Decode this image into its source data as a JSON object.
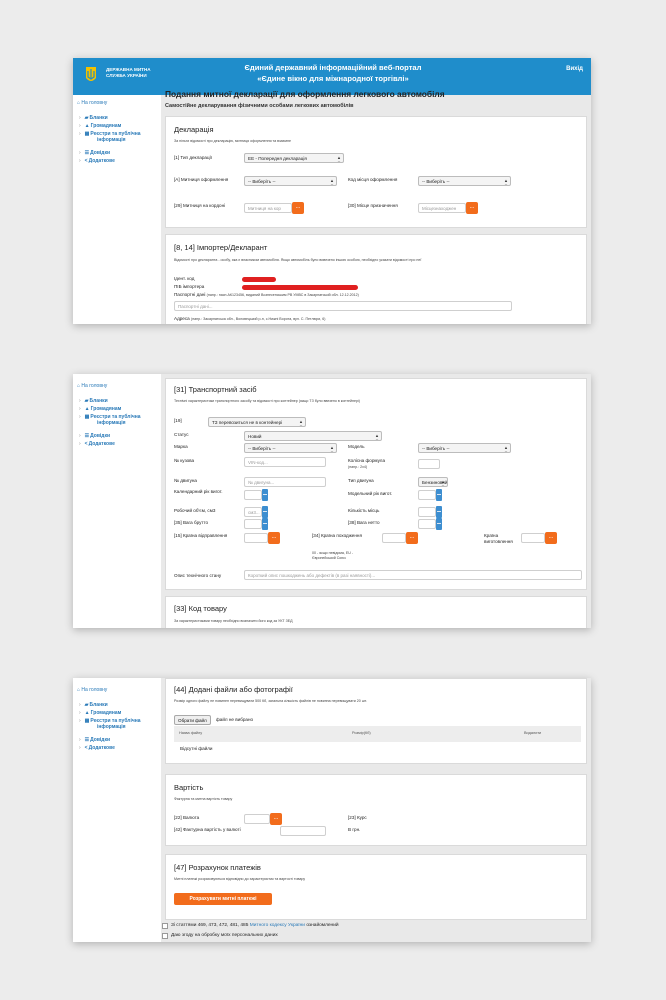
{
  "header": {
    "org_line1": "ДЕРЖАВНА МИТНА",
    "org_line2": "СЛУЖБА УКРАЇНИ",
    "portal_line1": "Єдиний державний інформаційний веб-портал",
    "portal_line2": "«Єдине вікно для міжнародної торгівлі»",
    "exit": "Вихід"
  },
  "sidebar": {
    "home": "На головну",
    "items": [
      {
        "label": "Бланки",
        "icon": "briefcase-icon"
      },
      {
        "label": "Громадянам",
        "icon": "users-icon"
      },
      {
        "label": "Реєстри та публічна",
        "label2": "інформація",
        "icon": "grid-icon"
      },
      {
        "label": "Довідки",
        "icon": "list-icon"
      },
      {
        "label": "Додаткове",
        "icon": "share-icon"
      }
    ]
  },
  "page": {
    "title": "Подання митної декларації для оформлення легкового автомобіля",
    "subtitle": "Самостійне декларування фізичними особами легкових автомобілів"
  },
  "declaration": {
    "title": "Декларація",
    "hint": "За пільги відомості про декларацію, митниця оформлення та взаємне",
    "type_label": "[1] Тип декларації",
    "type_value": "ЕЕ - Попередня декларація",
    "customs_a_label": "[A] Митниця оформлення",
    "customs_a_value": "-- Виберіть --",
    "place_code_label": "Код місця оформлення",
    "place_code_value": "-- Виберіть --",
    "border_label": "[29] Митниця на кордоні",
    "border_placeholder": "Митниця на кор",
    "dest_label": "[30] Місце призначення",
    "dest_placeholder": "Місцезнаходжен",
    "search_btn": "..."
  },
  "importer": {
    "title": "[8, 14] Імпортер/Декларант",
    "hint": "Відомості про декларанта - особу, яка є власником автомобіля. Якщо автомобіль було вивезено іншою особою, необхідно указати відомості про неї",
    "id_code_label": "Ідент. код",
    "tpb_label": "ПІБ імпортера",
    "passport_label": "Паспортні дані",
    "passport_example": "(напр.: пасп.АК123456, виданий Вознесенським РВ УМВС в Закарпатській обл. 12.12.2012)",
    "passport_placeholder": "Паспортні дані...",
    "address_label": "Адреса",
    "address_example": "(напр.: Закарпатська обл., Воловецький р-н, с.Нижні Ворота, вул. С. Петлюри, 6)"
  },
  "transport": {
    "title": "[31] Транспортний засіб",
    "hint": "Технічні характеристики транспортного засобу та відомості про контейнер (якщо ТЗ було ввезено в контейнері)",
    "container_label": "[19]",
    "container_value": "ТЗ перевозиться не в контейнері",
    "status_label": "Статус",
    "status_value": "Новий",
    "brand_label": "Марка",
    "brand_value": "-- Виберіть --",
    "model_label": "Модель",
    "model_value": "-- Виберіть --",
    "vin_label": "№ кузова",
    "vin_placeholder": "VIN-код...",
    "wheel_label": "Колісна формула",
    "wheel_example": "(напр.: 2х4)",
    "engine_no_label": "№ двигуна",
    "engine_no_placeholder": "№ двигуна...",
    "engine_type_label": "Тип двигуна",
    "engine_type_value": "Бензиновий",
    "cal_year_label": "Календарний рік вигот.",
    "model_year_label": "Модельний рік вигот.",
    "volume_label": "Робочий об'єм, см3",
    "volume_placeholder": "см3...",
    "seats_label": "Кількість місць",
    "gross_label": "[35] Вага брутто",
    "net_label": "[38] Вага нетто",
    "dispatch_label": "[15] Країна відправлення",
    "origin_label": "[34] Країна походження",
    "origin_note": "00 - якщо невідома, EU - Європейський Союз",
    "maker_label": "Країна виготовлення",
    "condition_label": "Опис технічного стану",
    "condition_placeholder": "Короткий опис пошкоджень або дефектів (в разі наявності)...",
    "search_btn": "..."
  },
  "goods_code": {
    "title": "[33] Код товару",
    "hint": "За характеристиками товару необхідно визначити його код за УКТ ЗЕД"
  },
  "files": {
    "title": "[44] Додані файли або фотографії",
    "hint": "Розмір одного файлу не повинен перевищувати 500 Кб, загальна кількість файлів не повинна перевищувати 20 шт.",
    "choose_btn": "Обрати файл",
    "no_file": "файл не вибрано",
    "col_name": "Назва файлу",
    "col_size": "Розмір(Кб)",
    "col_delete": "Видалити",
    "empty": "Відсутні файли"
  },
  "cost": {
    "title": "Вартість",
    "hint": "Фактурна та митна вартість товару",
    "currency_label": "[22] Валюта",
    "rate_label": "[23] Курс",
    "invoice_label": "[42] Фактурна вартість у валюті",
    "uah_label": "В грн.",
    "search_btn": "..."
  },
  "payments": {
    "title": "[47] Розрахунок платежів",
    "hint": "Митні платежі розраховуються відповідно до характеристик та вартості товару",
    "calc_btn": "Розрахувати митні платежі"
  },
  "consent": {
    "articles_prefix": "Зі статтями 469, 473, 472, 481, 485",
    "code_link": "Митного кодексу України",
    "articles_suffix": "ознайомлений",
    "personal_data": "Даю згоду на обробку моїх персональних даних"
  },
  "colors": {
    "header_blue": "#1f8dcb",
    "accent_orange": "#f26c1c",
    "link_blue": "#2a7ab8",
    "redaction_red": "#e02020"
  }
}
